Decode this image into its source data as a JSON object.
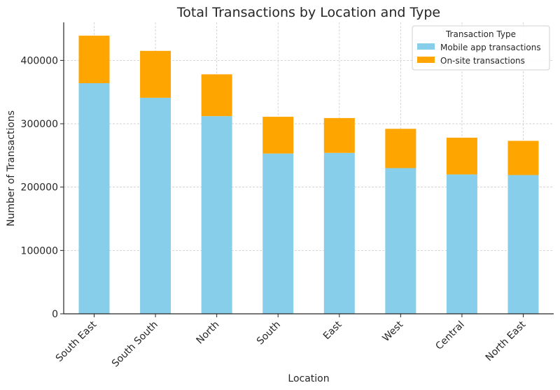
{
  "chart_data": {
    "type": "bar",
    "stacked": true,
    "title": "Total Transactions by Location and Type",
    "xlabel": "Location",
    "ylabel": "Number of Transactions",
    "categories": [
      "South East",
      "South South",
      "North",
      "South",
      "East",
      "West",
      "Central",
      "North East"
    ],
    "series": [
      {
        "name": "Mobile app transactions",
        "color": "#87ceeb",
        "values": [
          364000,
          341000,
          312000,
          253000,
          254000,
          230000,
          220000,
          219000
        ]
      },
      {
        "name": "On-site transactions",
        "color": "#ffa500",
        "values": [
          75000,
          74000,
          66000,
          58000,
          55000,
          62000,
          58000,
          54000
        ]
      }
    ],
    "ylim": [
      0,
      460000
    ],
    "yticks": [
      0,
      100000,
      200000,
      300000,
      400000
    ],
    "ytick_labels": [
      "0",
      "100000",
      "200000",
      "300000",
      "400000"
    ],
    "grid": true,
    "legend": {
      "title": "Transaction Type",
      "placement": "top-right"
    }
  }
}
